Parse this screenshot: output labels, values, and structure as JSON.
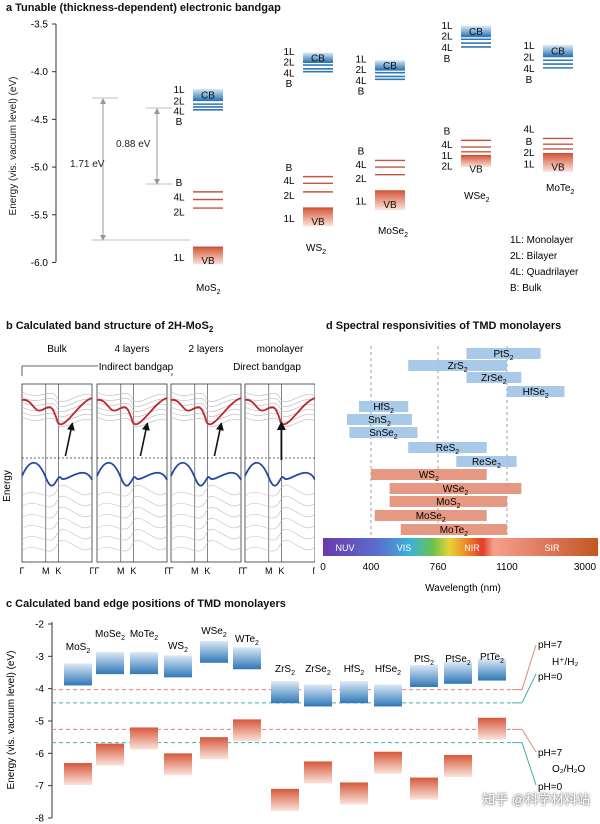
{
  "panels": {
    "a": {
      "letter": "a",
      "title": "Tunable (thickness-dependent) electronic bandgap",
      "ylabel": "Energy (vis. vacuum level) (eV)",
      "yticks": [
        "-3.5",
        "-4.0",
        "-4.5",
        "-5.0",
        "-5.5",
        "-6.0"
      ],
      "gap1": "1.71 eV",
      "gap2": "0.88 eV",
      "cb": "CB",
      "vb": "VB",
      "materials": [
        {
          "name": "MoS",
          "sub": "2",
          "cb_labels": [
            "1L",
            "2L",
            "4L",
            "B"
          ],
          "vb_labels": [
            "B",
            "4L",
            "2L",
            "1L"
          ]
        },
        {
          "name": "WS",
          "sub": "2",
          "cb_labels": [
            "1L",
            "2L",
            "4L",
            "B"
          ],
          "vb_labels": [
            "B",
            "4L",
            "2L",
            "1L"
          ]
        },
        {
          "name": "MoSe",
          "sub": "2",
          "cb_labels": [
            "1L",
            "2L",
            "4L",
            "B"
          ],
          "vb_labels": [
            "B",
            "4L",
            "2L",
            "1L"
          ]
        },
        {
          "name": "WSe",
          "sub": "2",
          "cb_labels": [
            "1L",
            "2L",
            "4L",
            "B"
          ],
          "vb_labels": [
            "B",
            "4L",
            "1L",
            "2L"
          ]
        },
        {
          "name": "MoTe",
          "sub": "2",
          "cb_labels": [
            "1L",
            "2L",
            "4L",
            "B"
          ],
          "vb_labels": [
            "4L",
            "B",
            "2L",
            "1L"
          ]
        }
      ],
      "legend": [
        "1L: Monolayer",
        "2L: Bilayer",
        "4L: Quadrilayer",
        "B: Bulk"
      ]
    },
    "b": {
      "letter": "b",
      "title": "Calculated band structure of 2H-MoS",
      "title_sub": "2",
      "columns": [
        "Bulk",
        "4 layers",
        "2 layers",
        "monolayer"
      ],
      "indirect": "Indirect bandgap",
      "direct": "Direct bandgap",
      "ylabel": "Energy",
      "kpoints": [
        "Γ",
        "M",
        "K",
        "Γ"
      ]
    },
    "d": {
      "letter": "d",
      "title": "Spectral responsivities of TMD monolayers",
      "xlabel": "Wavelength (nm)",
      "xticks": [
        "0",
        "400",
        "760",
        "1100",
        "3000"
      ],
      "regions": [
        "NUV",
        "VIS",
        "NIR",
        "SIR"
      ],
      "bars": [
        {
          "name": "PtS",
          "sub": "2"
        },
        {
          "name": "ZrS",
          "sub": "2"
        },
        {
          "name": "ZrSe",
          "sub": "2"
        },
        {
          "name": "HfSe",
          "sub": "2"
        },
        {
          "name": "HfS",
          "sub": "2"
        },
        {
          "name": "SnS",
          "sub": "2"
        },
        {
          "name": "SnSe",
          "sub": "2"
        },
        {
          "name": "ReS",
          "sub": "2"
        },
        {
          "name": "ReSe",
          "sub": "2"
        },
        {
          "name": "WS",
          "sub": "2"
        },
        {
          "name": "WSe",
          "sub": "2"
        },
        {
          "name": "MoS",
          "sub": "2"
        },
        {
          "name": "MoSe",
          "sub": "2"
        },
        {
          "name": "MoTe",
          "sub": "2"
        }
      ]
    },
    "c": {
      "letter": "c",
      "title": "Calculated band edge positions of TMD monolayers",
      "ylabel": "Energy (vis. vacuum level) (eV)",
      "yticks": [
        "-2",
        "-3",
        "-4",
        "-5",
        "-6",
        "-7",
        "-8"
      ],
      "materials": [
        {
          "name": "MoS",
          "sub": "2"
        },
        {
          "name": "MoSe",
          "sub": "2"
        },
        {
          "name": "MoTe",
          "sub": "2"
        },
        {
          "name": "WS",
          "sub": "2"
        },
        {
          "name": "WSe",
          "sub": "2"
        },
        {
          "name": "WTe",
          "sub": "2"
        },
        {
          "name": "ZrS",
          "sub": "2"
        },
        {
          "name": "ZrSe",
          "sub": "2"
        },
        {
          "name": "HfS",
          "sub": "2"
        },
        {
          "name": "HfSe",
          "sub": "2"
        },
        {
          "name": "PtS",
          "sub": "2"
        },
        {
          "name": "PtSe",
          "sub": "2"
        },
        {
          "name": "PtTe",
          "sub": "2"
        }
      ],
      "ph7_top": "pH=7",
      "hplus": "H⁺/H₂",
      "ph0_top": "pH=0",
      "ph7_bot": "pH=7",
      "o2": "O₂/H₂O",
      "ph0_bot": "pH=0"
    }
  },
  "watermark": "知乎 @科学材料站",
  "chart_data": [
    {
      "type": "bar",
      "title": "Tunable (thickness-dependent) electronic bandgap",
      "ylabel": "Energy (vis. vacuum level) (eV)",
      "ylim": [
        -6.1,
        -3.5
      ],
      "series": [
        {
          "name": "MoS2",
          "cb_edges": {
            "1L": -4.3,
            "2L": -4.34,
            "4L": -4.37,
            "B": -4.4
          },
          "vb_edges": {
            "B": -5.26,
            "4L": -5.34,
            "2L": -5.43,
            "1L": -5.84
          }
        },
        {
          "name": "WS2",
          "cb_edges": {
            "1L": -3.9,
            "2L": -3.93,
            "4L": -3.97,
            "B": -4.0
          },
          "vb_edges": {
            "B": -5.1,
            "4L": -5.17,
            "2L": -5.26,
            "1L": -5.43
          }
        },
        {
          "name": "MoSe2",
          "cb_edges": {
            "1L": -3.98,
            "2L": -4.01,
            "4L": -4.05,
            "B": -4.08
          },
          "vb_edges": {
            "B": -4.93,
            "4L": -5.0,
            "2L": -5.08,
            "1L": -5.25
          }
        },
        {
          "name": "WSe2",
          "cb_edges": {
            "1L": -3.63,
            "2L": -3.66,
            "4L": -3.7,
            "B": -3.74
          },
          "vb_edges": {
            "B": -4.72,
            "4L": -4.79,
            "1L": -4.84,
            "2L": -4.88
          }
        },
        {
          "name": "MoTe2",
          "cb_edges": {
            "1L": -3.84,
            "2L": -3.88,
            "4L": -3.92,
            "B": -3.96
          },
          "vb_edges": {
            "4L": -4.7,
            "B": -4.76,
            "2L": -4.81,
            "1L": -4.86
          }
        }
      ],
      "annotations": [
        "1.71 eV",
        "0.88 eV"
      ]
    },
    {
      "type": "bar",
      "title": "Spectral responsivities of TMD monolayers",
      "xlabel": "Wavelength (nm)",
      "xticks": [
        "0",
        "400",
        "760",
        "1100",
        "3000"
      ],
      "ranges": [
        {
          "name": "PtS2",
          "from": 900,
          "to": 1800
        },
        {
          "name": "ZrS2",
          "from": 600,
          "to": 1100
        },
        {
          "name": "ZrSe2",
          "from": 900,
          "to": 1400
        },
        {
          "name": "HfSe2",
          "from": 1100,
          "to": 2300
        },
        {
          "name": "HfS2",
          "from": 300,
          "to": 600
        },
        {
          "name": "SnS2",
          "from": 200,
          "to": 620
        },
        {
          "name": "SnSe2",
          "from": 220,
          "to": 650
        },
        {
          "name": "ReS2",
          "from": 600,
          "to": 1000
        },
        {
          "name": "ReSe2",
          "from": 850,
          "to": 1300
        },
        {
          "name": "WS2",
          "from": 400,
          "to": 1000
        },
        {
          "name": "WSe2",
          "from": 500,
          "to": 1400
        },
        {
          "name": "MoS2",
          "from": 500,
          "to": 1100
        },
        {
          "name": "MoSe2",
          "from": 420,
          "to": 1000
        },
        {
          "name": "MoTe2",
          "from": 560,
          "to": 1100
        }
      ]
    },
    {
      "type": "bar",
      "title": "Calculated band edge positions of TMD monolayers",
      "ylabel": "Energy (vis. vacuum level) (eV)",
      "ylim": [
        -8,
        -2
      ],
      "categories": [
        "MoS2",
        "MoSe2",
        "MoTe2",
        "WS2",
        "WSe2",
        "WTe2",
        "ZrS2",
        "ZrSe2",
        "HfS2",
        "HfSe2",
        "PtS2",
        "PtSe2",
        "PtTe2"
      ],
      "series": [
        {
          "name": "CBM",
          "values": [
            -3.9,
            -3.55,
            -3.55,
            -3.65,
            -3.2,
            -3.4,
            -4.45,
            -4.55,
            -4.45,
            -4.55,
            -3.95,
            -3.85,
            -3.75
          ]
        },
        {
          "name": "VBM",
          "values": [
            -6.3,
            -5.7,
            -5.2,
            -6.0,
            -5.5,
            -4.95,
            -7.1,
            -6.25,
            -6.9,
            -5.95,
            -6.75,
            -6.05,
            -4.9
          ]
        }
      ],
      "reference_levels": {
        "H+/H2 pH=7": -4.03,
        "H+/H2 pH=0": -4.44,
        "O2/H2O pH=7": -5.26,
        "O2/H2O pH=0": -5.67
      }
    }
  ]
}
